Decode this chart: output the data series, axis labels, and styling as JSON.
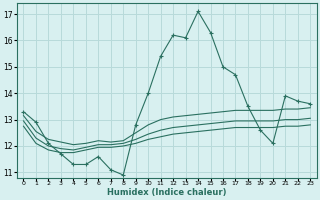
{
  "xlabel": "Humidex (Indice chaleur)",
  "bg_color": "#d8f0f0",
  "grid_color": "#b8dada",
  "line_color": "#2a7060",
  "xlim": [
    -0.5,
    23.5
  ],
  "ylim": [
    10.8,
    17.4
  ],
  "yticks": [
    11,
    12,
    13,
    14,
    15,
    16,
    17
  ],
  "xticks": [
    0,
    1,
    2,
    3,
    4,
    5,
    6,
    7,
    8,
    9,
    10,
    11,
    12,
    13,
    14,
    15,
    16,
    17,
    18,
    19,
    20,
    21,
    22,
    23
  ],
  "line1_x": [
    0,
    1,
    2,
    3,
    4,
    5,
    6,
    7,
    8,
    9,
    10,
    11,
    12,
    13,
    14,
    15,
    16,
    17,
    18,
    19,
    20,
    21,
    22,
    23
  ],
  "line1_y": [
    13.3,
    12.9,
    12.1,
    11.7,
    11.3,
    11.3,
    11.6,
    11.1,
    10.9,
    12.8,
    14.0,
    15.4,
    16.2,
    16.1,
    17.1,
    16.3,
    15.0,
    14.7,
    13.5,
    12.6,
    12.1,
    13.9,
    13.7,
    13.6
  ],
  "line2_x": [
    0,
    1,
    2,
    3,
    4,
    5,
    6,
    7,
    8,
    9,
    10,
    11,
    12,
    13,
    14,
    15,
    16,
    17,
    18,
    19,
    20,
    21,
    22,
    23
  ],
  "line2_y": [
    13.15,
    12.55,
    12.25,
    12.15,
    12.05,
    12.1,
    12.2,
    12.15,
    12.2,
    12.5,
    12.8,
    13.0,
    13.1,
    13.15,
    13.2,
    13.25,
    13.3,
    13.35,
    13.35,
    13.35,
    13.35,
    13.4,
    13.4,
    13.45
  ],
  "line3_x": [
    0,
    1,
    2,
    3,
    4,
    5,
    6,
    7,
    8,
    9,
    10,
    11,
    12,
    13,
    14,
    15,
    16,
    17,
    18,
    19,
    20,
    21,
    22,
    23
  ],
  "line3_y": [
    12.95,
    12.3,
    12.0,
    11.9,
    11.85,
    11.95,
    12.05,
    12.05,
    12.1,
    12.25,
    12.45,
    12.6,
    12.7,
    12.75,
    12.8,
    12.85,
    12.9,
    12.95,
    12.95,
    12.95,
    12.95,
    13.0,
    13.0,
    13.05
  ],
  "line4_x": [
    0,
    1,
    2,
    3,
    4,
    5,
    6,
    7,
    8,
    9,
    10,
    11,
    12,
    13,
    14,
    15,
    16,
    17,
    18,
    19,
    20,
    21,
    22,
    23
  ],
  "line4_y": [
    12.75,
    12.1,
    11.85,
    11.75,
    11.75,
    11.85,
    11.95,
    11.95,
    12.0,
    12.1,
    12.25,
    12.35,
    12.45,
    12.5,
    12.55,
    12.6,
    12.65,
    12.7,
    12.7,
    12.7,
    12.7,
    12.75,
    12.75,
    12.8
  ]
}
